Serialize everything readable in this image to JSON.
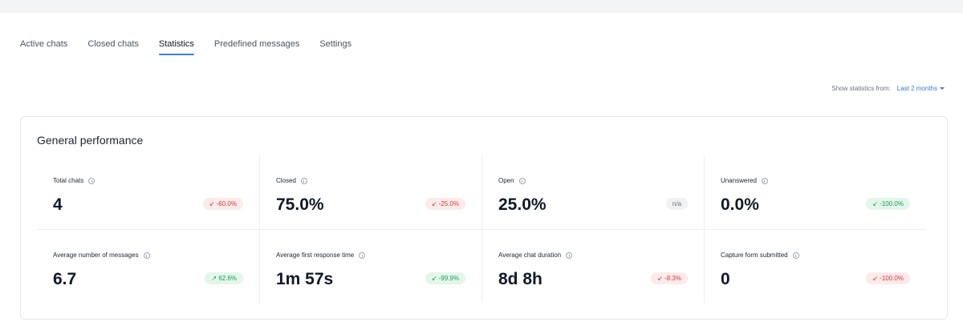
{
  "tabs": [
    {
      "label": "Active chats"
    },
    {
      "label": "Closed chats"
    },
    {
      "label": "Statistics"
    },
    {
      "label": "Predefined messages"
    },
    {
      "label": "Settings"
    }
  ],
  "active_tab": "Statistics",
  "stats_filter": {
    "label": "Show statistics from:",
    "value": "Last 2 months"
  },
  "card": {
    "title": "General performance",
    "metrics": [
      {
        "label": "Total chats",
        "value": "4",
        "change": "↙ -60.0%",
        "tone": "down"
      },
      {
        "label": "Closed",
        "value": "75.0%",
        "change": "↙ -25.0%",
        "tone": "down"
      },
      {
        "label": "Open",
        "value": "25.0%",
        "change": "n/a",
        "tone": "neutral"
      },
      {
        "label": "Unanswered",
        "value": "0.0%",
        "change": "↙ -100.0%",
        "tone": "good"
      },
      {
        "label": "Average number of messages",
        "value": "6.7",
        "change": "↗ 62.6%",
        "tone": "good"
      },
      {
        "label": "Average first response time",
        "value": "1m 57s",
        "change": "↙ -99.9%",
        "tone": "good"
      },
      {
        "label": "Average chat duration",
        "value": "8d 8h",
        "change": "↙ -8.3%",
        "tone": "down"
      },
      {
        "label": "Capture form submitted",
        "value": "0",
        "change": "↙ -100.0%",
        "tone": "down"
      }
    ]
  }
}
